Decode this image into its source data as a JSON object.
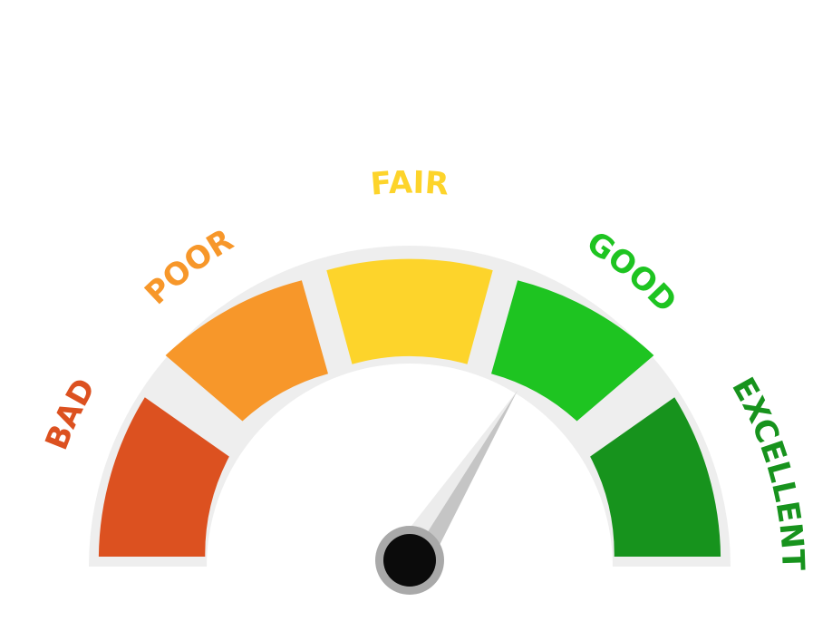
{
  "gauge": {
    "level": 0.68,
    "segments": [
      {
        "label": "BAD",
        "color": "#dc5120"
      },
      {
        "label": "POOR",
        "color": "#f7972a"
      },
      {
        "label": "FAIR",
        "color": "#fdd42b"
      },
      {
        "label": "GOOD",
        "color": "#1ec421"
      },
      {
        "label": "EXCELLENT",
        "color": "#17931d"
      }
    ],
    "colors": {
      "track": "#eeeeee",
      "needle_light": "#ececec",
      "needle_dark": "#c5c5c5",
      "hub_outer": "#a9a9a9",
      "hub_inner": "#0b0b0b"
    }
  }
}
